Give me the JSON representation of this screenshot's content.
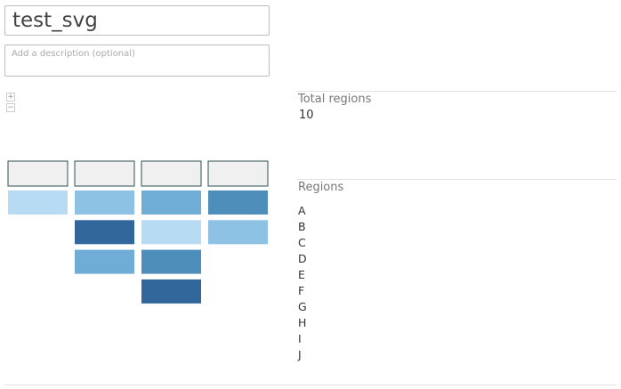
{
  "title": "test_svg",
  "description_placeholder": "Add a description (optional)",
  "zoom": {
    "in_label": "+",
    "out_label": "−"
  },
  "stats": {
    "total_label": "Total regions",
    "total_value": "10",
    "regions_label": "Regions"
  },
  "regions": [
    "A",
    "B",
    "C",
    "D",
    "E",
    "F",
    "G",
    "H",
    "I",
    "J"
  ],
  "colors": {
    "header_fill": "#f0f0f0",
    "header_stroke": "#2f4f4f",
    "scale": [
      "#b8dbf4",
      "#8ec2e5",
      "#6fadd6",
      "#4d8ebb",
      "#32679b"
    ]
  },
  "map": {
    "columns": [
      {
        "levels": [
          0
        ]
      },
      {
        "levels": [
          1,
          4,
          2
        ]
      },
      {
        "levels": [
          2,
          0,
          3,
          4
        ]
      },
      {
        "levels": [
          3,
          1
        ]
      }
    ]
  }
}
